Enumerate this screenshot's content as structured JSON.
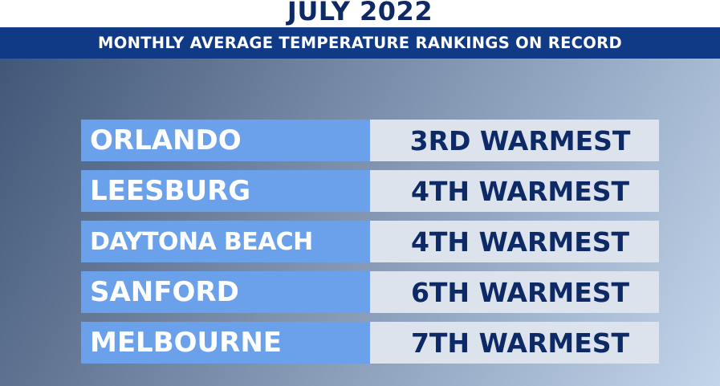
{
  "header": {
    "title": "JULY 2022",
    "subtitle": "MONTHLY AVERAGE TEMPERATURE RANKINGS ON RECORD"
  },
  "colors": {
    "title_text": "#0d2a66",
    "subtitle_bar": "#103a85",
    "city_cell": "#6aa1ea",
    "rank_cell": "#dde3ec",
    "rank_text": "#0d2a66"
  },
  "rankings": [
    {
      "city": "ORLANDO",
      "rank": "3RD WARMEST"
    },
    {
      "city": "LEESBURG",
      "rank": "4TH WARMEST"
    },
    {
      "city": "DAYTONA BEACH",
      "rank": "4TH WARMEST"
    },
    {
      "city": "SANFORD",
      "rank": "6TH WARMEST"
    },
    {
      "city": "MELBOURNE",
      "rank": "7TH WARMEST"
    }
  ]
}
